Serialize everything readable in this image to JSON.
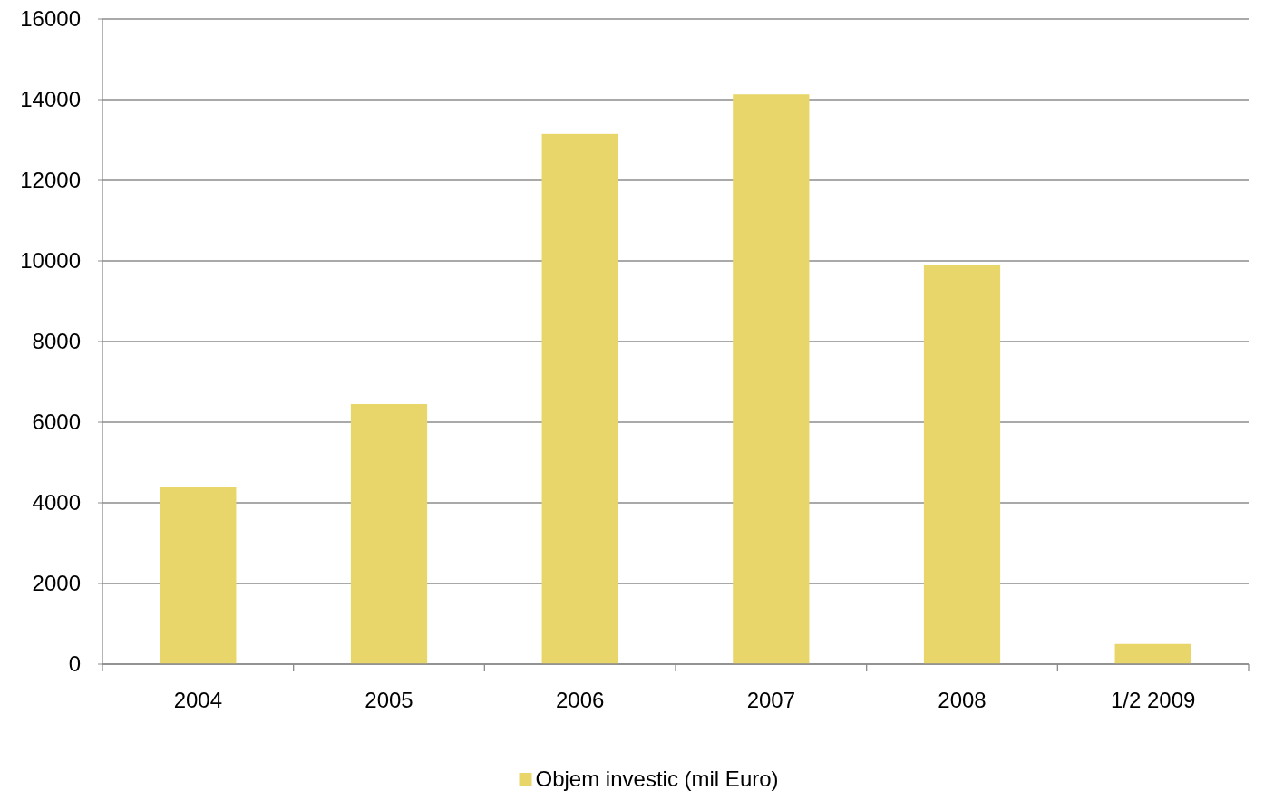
{
  "chart_data": {
    "type": "bar",
    "categories": [
      "2004",
      "2005",
      "2006",
      "2007",
      "2008",
      "1/2 2009"
    ],
    "series": [
      {
        "name": "Objem investic (mil Euro)",
        "color": "#e9d66b",
        "values": [
          4400,
          6450,
          13150,
          14130,
          9890,
          500
        ]
      }
    ],
    "ylim": [
      0,
      16000
    ],
    "yticks": [
      0,
      2000,
      4000,
      6000,
      8000,
      10000,
      12000,
      14000,
      16000
    ],
    "grid": "y",
    "legend": "bottom"
  }
}
